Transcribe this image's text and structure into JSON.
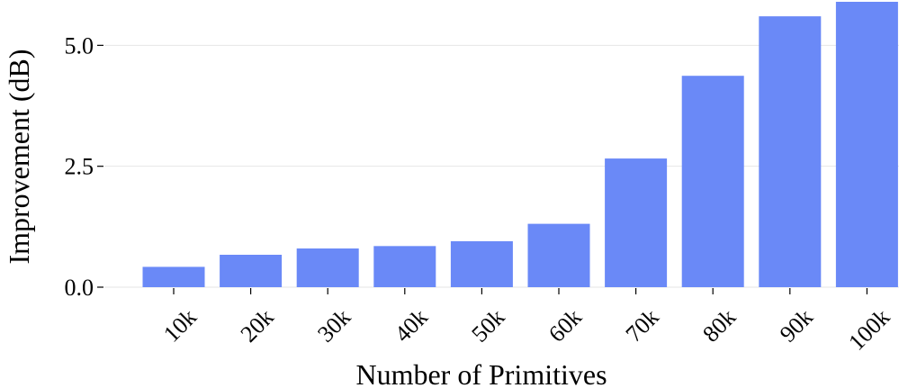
{
  "chart_data": {
    "type": "bar",
    "title": "",
    "xlabel": "Number of Primitives",
    "ylabel": "Improvement (dB)",
    "categories": [
      "10k",
      "20k",
      "30k",
      "40k",
      "50k",
      "60k",
      "70k",
      "80k",
      "90k",
      "100k"
    ],
    "values": [
      0.42,
      0.67,
      0.8,
      0.85,
      0.95,
      1.31,
      2.66,
      4.37,
      5.6,
      5.9
    ],
    "ylim": [
      0,
      5.9
    ],
    "yticks": [
      0.0,
      2.5,
      5.0
    ],
    "ytick_labels": [
      "0.0",
      "2.5",
      "5.0"
    ],
    "grid": true,
    "bar_color": "#6a89f7"
  }
}
